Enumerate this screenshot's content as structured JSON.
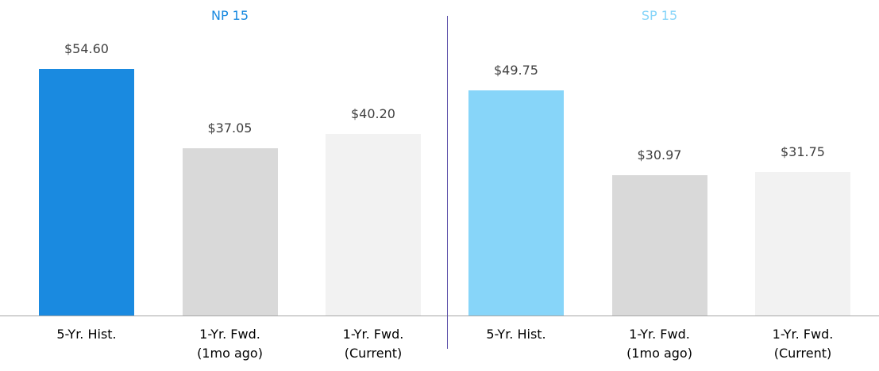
{
  "chart_data": [
    {
      "type": "bar",
      "title": "NP 15",
      "title_color": "#1a8ae0",
      "categories": [
        "5-Yr. Hist.",
        "1-Yr. Fwd. (1mo ago)",
        "1-Yr. Fwd. (Current)"
      ],
      "values": [
        54.6,
        37.05,
        40.2
      ],
      "value_labels": [
        "$54.60",
        "$37.05",
        "$40.20"
      ],
      "colors": [
        "#1a8ae0",
        "#d9d9d9",
        "#f2f2f2"
      ]
    },
    {
      "type": "bar",
      "title": "SP 15",
      "title_color": "#87d5f9",
      "categories": [
        "5-Yr. Hist.",
        "1-Yr. Fwd. (1mo ago)",
        "1-Yr. Fwd. (Current)"
      ],
      "values": [
        49.75,
        30.97,
        31.75
      ],
      "value_labels": [
        "$49.75",
        "$30.97",
        "$31.75"
      ],
      "colors": [
        "#87d5f9",
        "#d9d9d9",
        "#f2f2f2"
      ]
    }
  ]
}
